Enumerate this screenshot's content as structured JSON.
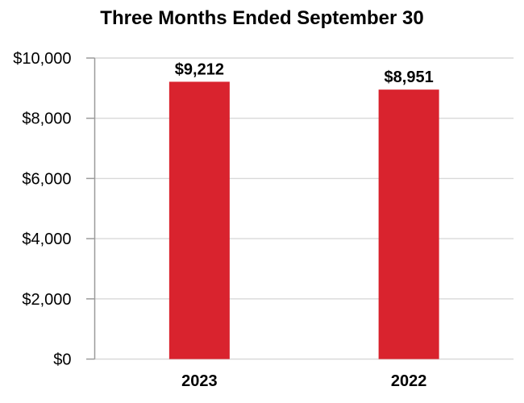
{
  "chart_data": {
    "type": "bar",
    "title": "Three Months Ended September 30",
    "categories": [
      "2023",
      "2022"
    ],
    "values": [
      9212,
      8951
    ],
    "value_labels": [
      "$9,212",
      "$8,951"
    ],
    "ylim": [
      0,
      10000
    ],
    "y_ticks": [
      {
        "value": 0,
        "label": "$0"
      },
      {
        "value": 2000,
        "label": "$2,000"
      },
      {
        "value": 4000,
        "label": "$4,000"
      },
      {
        "value": 6000,
        "label": "$6,000"
      },
      {
        "value": 8000,
        "label": "$8,000"
      },
      {
        "value": 10000,
        "label": "$10,000"
      }
    ],
    "xlabel": "",
    "ylabel": "",
    "legend": "none",
    "grid": "horizontal",
    "colors": {
      "bar": "#D9232E",
      "gridline": "#D9D9D9",
      "axis": "#9B9B9B",
      "text": "#000000",
      "background": "#FFFFFF"
    }
  }
}
